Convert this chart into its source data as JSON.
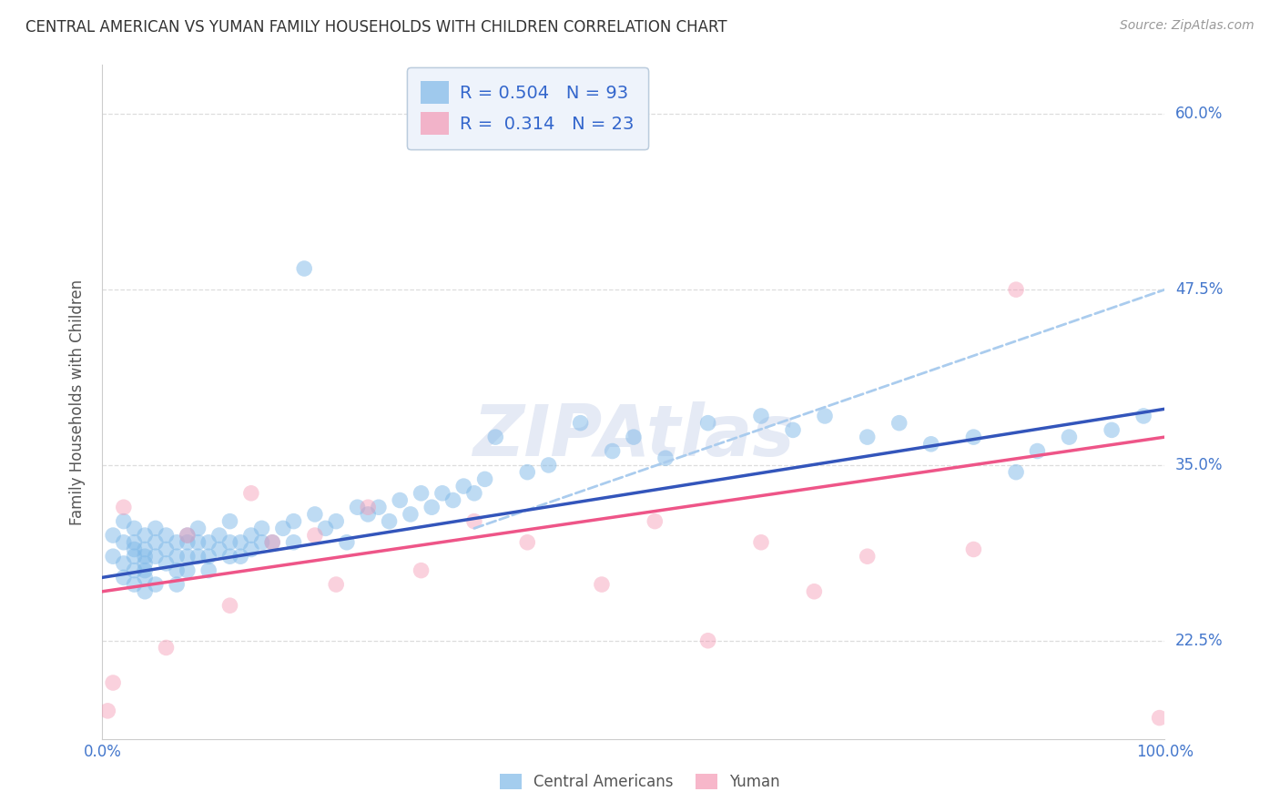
{
  "title": "CENTRAL AMERICAN VS YUMAN FAMILY HOUSEHOLDS WITH CHILDREN CORRELATION CHART",
  "source": "Source: ZipAtlas.com",
  "ylabel": "Family Households with Children",
  "xlim": [
    0.0,
    1.0
  ],
  "ylim": [
    0.155,
    0.635
  ],
  "yticks": [
    0.225,
    0.35,
    0.475,
    0.6
  ],
  "ytick_labels": [
    "22.5%",
    "35.0%",
    "47.5%",
    "60.0%"
  ],
  "blue_R": 0.504,
  "blue_N": 93,
  "pink_R": 0.314,
  "pink_N": 23,
  "blue_color": "#7EB8E8",
  "pink_color": "#F599B4",
  "blue_line_color": "#3355BB",
  "pink_line_color": "#EE5588",
  "dashed_color": "#AACCEE",
  "grid_color": "#DDDDDD",
  "title_color": "#333333",
  "tick_label_color": "#4477CC",
  "watermark_color": "#E5EAF5",
  "legend_bg": "#EEF3FB",
  "legend_border": "#BBCCDD",
  "legend_text_color": "#333333",
  "legend_value_color": "#3366CC",
  "blue_scatter_x": [
    0.01,
    0.01,
    0.02,
    0.02,
    0.02,
    0.02,
    0.03,
    0.03,
    0.03,
    0.03,
    0.03,
    0.03,
    0.04,
    0.04,
    0.04,
    0.04,
    0.04,
    0.04,
    0.04,
    0.05,
    0.05,
    0.05,
    0.05,
    0.06,
    0.06,
    0.06,
    0.07,
    0.07,
    0.07,
    0.07,
    0.08,
    0.08,
    0.08,
    0.08,
    0.09,
    0.09,
    0.09,
    0.1,
    0.1,
    0.1,
    0.11,
    0.11,
    0.12,
    0.12,
    0.12,
    0.13,
    0.13,
    0.14,
    0.14,
    0.15,
    0.15,
    0.16,
    0.17,
    0.18,
    0.18,
    0.19,
    0.2,
    0.21,
    0.22,
    0.23,
    0.24,
    0.25,
    0.26,
    0.27,
    0.28,
    0.29,
    0.3,
    0.31,
    0.32,
    0.33,
    0.34,
    0.35,
    0.36,
    0.37,
    0.4,
    0.42,
    0.45,
    0.48,
    0.5,
    0.53,
    0.57,
    0.62,
    0.65,
    0.68,
    0.72,
    0.75,
    0.78,
    0.82,
    0.86,
    0.88,
    0.91,
    0.95,
    0.98
  ],
  "blue_scatter_y": [
    0.285,
    0.3,
    0.295,
    0.31,
    0.27,
    0.28,
    0.29,
    0.305,
    0.265,
    0.275,
    0.285,
    0.295,
    0.3,
    0.275,
    0.285,
    0.26,
    0.27,
    0.28,
    0.29,
    0.285,
    0.295,
    0.305,
    0.265,
    0.28,
    0.29,
    0.3,
    0.285,
    0.295,
    0.275,
    0.265,
    0.3,
    0.285,
    0.275,
    0.295,
    0.285,
    0.295,
    0.305,
    0.285,
    0.295,
    0.275,
    0.29,
    0.3,
    0.285,
    0.295,
    0.31,
    0.295,
    0.285,
    0.3,
    0.29,
    0.305,
    0.295,
    0.295,
    0.305,
    0.295,
    0.31,
    0.49,
    0.315,
    0.305,
    0.31,
    0.295,
    0.32,
    0.315,
    0.32,
    0.31,
    0.325,
    0.315,
    0.33,
    0.32,
    0.33,
    0.325,
    0.335,
    0.33,
    0.34,
    0.37,
    0.345,
    0.35,
    0.38,
    0.36,
    0.37,
    0.355,
    0.38,
    0.385,
    0.375,
    0.385,
    0.37,
    0.38,
    0.365,
    0.37,
    0.345,
    0.36,
    0.37,
    0.375,
    0.385
  ],
  "pink_scatter_x": [
    0.005,
    0.01,
    0.02,
    0.06,
    0.08,
    0.12,
    0.14,
    0.16,
    0.2,
    0.22,
    0.25,
    0.3,
    0.35,
    0.4,
    0.47,
    0.52,
    0.57,
    0.62,
    0.67,
    0.72,
    0.82,
    0.86,
    0.995
  ],
  "pink_scatter_y": [
    0.175,
    0.195,
    0.32,
    0.22,
    0.3,
    0.25,
    0.33,
    0.295,
    0.3,
    0.265,
    0.32,
    0.275,
    0.31,
    0.295,
    0.265,
    0.31,
    0.225,
    0.295,
    0.26,
    0.285,
    0.29,
    0.475,
    0.17
  ],
  "blue_trend": [
    0.0,
    0.27,
    1.0,
    0.39
  ],
  "pink_trend": [
    0.0,
    0.26,
    1.0,
    0.37
  ],
  "dashed_trend": [
    0.35,
    0.305,
    1.0,
    0.475
  ],
  "legend_label_blue": "Central Americans",
  "legend_label_pink": "Yuman"
}
